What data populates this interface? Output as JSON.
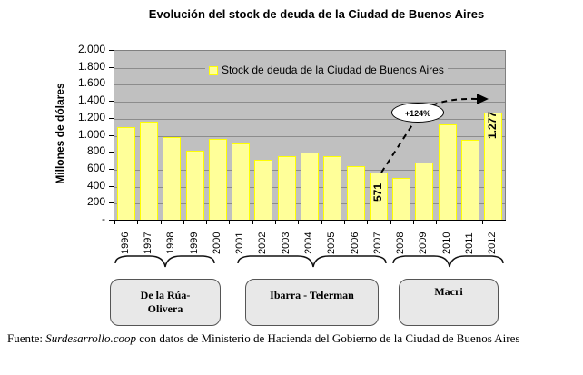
{
  "chart_data": {
    "type": "bar",
    "title": "Evolución del stock de deuda de la Ciudad de Buenos Aires",
    "xlabel": "",
    "ylabel": "Millones de dólares",
    "ylim": [
      0,
      2000
    ],
    "yticks": [
      "-",
      "200",
      "400",
      "600",
      "800",
      "1.000",
      "1.200",
      "1.400",
      "1.600",
      "1.800",
      "2.000"
    ],
    "grid": true,
    "legend": {
      "position": "top-inside",
      "entries": [
        "Stock de deuda de la Ciudad de Buenos Aires"
      ]
    },
    "categories": [
      "1996",
      "1997",
      "1998",
      "1999",
      "2000",
      "2001",
      "2002",
      "2003",
      "2004",
      "2005",
      "2006",
      "2007",
      "2008",
      "2009",
      "2010",
      "2011",
      "2012"
    ],
    "series": [
      {
        "name": "Stock de deuda de la Ciudad de Buenos Aires",
        "color": "#ffff99",
        "values": [
          1100,
          1165,
          980,
          825,
          960,
          910,
          715,
          760,
          800,
          760,
          640,
          571,
          500,
          685,
          1135,
          950,
          1277
        ]
      }
    ],
    "data_labels": [
      {
        "category": "2007",
        "text": "571"
      },
      {
        "category": "2012",
        "text": "1.277"
      }
    ],
    "annotations": [
      {
        "text": "+124%",
        "type": "dashed-arrow",
        "from": "2007",
        "to": "2012"
      }
    ],
    "periods": [
      {
        "label": "De la Rúa-\nOlivera",
        "from": "1996",
        "to": "2000"
      },
      {
        "label": "Ibarra - Telerman",
        "from": "2001",
        "to": "2007"
      },
      {
        "label": "Macri",
        "from": "2008",
        "to": "2012"
      }
    ]
  },
  "source": {
    "prefix": "Fuente: ",
    "site": "Surdesarrollo.coop",
    "rest": " con datos de Ministerio de Hacienda del Gobierno de la Ciudad de Buenos Aires"
  }
}
